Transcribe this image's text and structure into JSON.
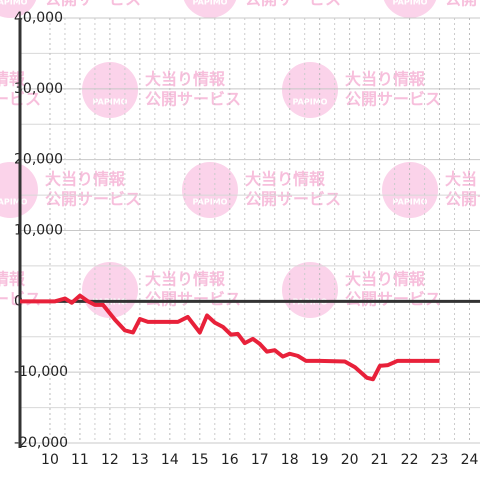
{
  "chart_data": {
    "type": "line",
    "watermark": {
      "lines": [
        "大当り情報",
        "公開サービス"
      ],
      "brand": "PAPIMO"
    },
    "x": [
      9.0,
      10.17,
      10.5,
      10.73,
      11.0,
      11.27,
      11.5,
      11.77,
      12.17,
      12.5,
      12.77,
      13.0,
      13.27,
      13.67,
      14.27,
      14.6,
      15.0,
      15.24,
      15.5,
      15.77,
      16.04,
      16.27,
      16.5,
      16.77,
      17.0,
      17.24,
      17.5,
      17.77,
      18.0,
      18.27,
      18.54,
      19.0,
      19.84,
      20.18,
      20.58,
      20.78,
      21.01,
      21.28,
      21.6,
      23.0
    ],
    "series": [
      {
        "color": "#e8213a",
        "values": [
          0,
          0,
          400,
          -200,
          800,
          0,
          -500,
          -500,
          -2600,
          -4100,
          -4400,
          -2500,
          -2900,
          -2900,
          -2900,
          -2200,
          -4400,
          -2000,
          -3000,
          -3600,
          -4700,
          -4600,
          -5900,
          -5300,
          -6000,
          -7100,
          -6900,
          -7800,
          -7400,
          -7700,
          -8400,
          -8400,
          -8500,
          -9300,
          -10800,
          -11000,
          -9100,
          -9000,
          -8400,
          -8400
        ]
      }
    ],
    "xlim": [
      9,
      24.35
    ],
    "xticks": [
      10,
      11,
      12,
      13,
      14,
      15,
      16,
      17,
      18,
      19,
      20,
      21,
      22,
      23,
      24
    ],
    "ylim": [
      -20000,
      40000
    ],
    "yticks": [
      {
        "value": -20000,
        "label": "-20,000"
      },
      {
        "value": -10000,
        "label": "-10,000"
      },
      0,
      {
        "value": 10000,
        "label": "10,000"
      },
      {
        "value": 20000,
        "label": "20,000"
      },
      {
        "value": 30000,
        "label": "30,000"
      },
      {
        "value": 40000,
        "label": "40,000"
      }
    ],
    "grid": true
  }
}
